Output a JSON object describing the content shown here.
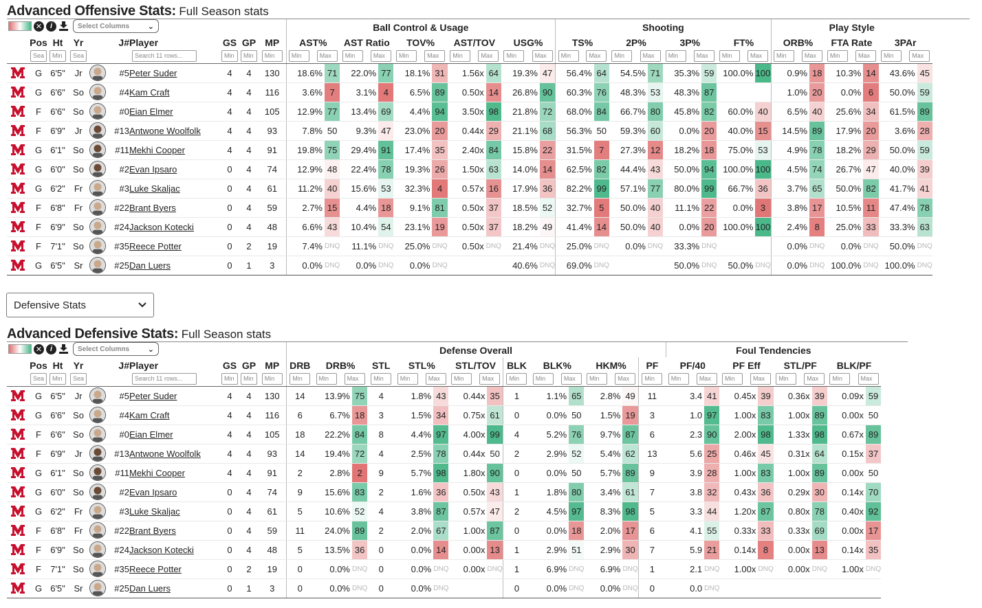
{
  "offense": {
    "title_bold": "Advanced Offensive Stats:",
    "title_rest": "Full Season stats",
    "select_columns": "Select Columns",
    "groups": {
      "ball": "Ball Control & Usage",
      "shooting": "Shooting",
      "play": "Play Style"
    },
    "headers": [
      "Pos",
      "Ht",
      "Yr",
      "J#",
      "Player",
      "GS",
      "GP",
      "MP",
      "AST%",
      "AST Ratio",
      "TOV%",
      "AST/TOV",
      "USG%",
      "TS%",
      "2P%",
      "3P%",
      "FT%",
      "ORB%",
      "FTA Rate",
      "3PAr"
    ],
    "filters": {
      "sea": "Sea",
      "min": "Min",
      "max": "Max",
      "search": "Search 11 rows..."
    },
    "rows": [
      [
        "G",
        "6'5\"",
        "Jr",
        "#5",
        "Peter Suder",
        "4",
        "4",
        "130",
        "18.6%",
        "71",
        "22.0%",
        "77",
        "18.1%",
        "31",
        "1.56x",
        "64",
        "19.3%",
        "47",
        "56.4%",
        "64",
        "54.5%",
        "71",
        "35.3%",
        "59",
        "100.0%",
        "100",
        "0.9%",
        "18",
        "10.3%",
        "14",
        "43.6%",
        "45"
      ],
      [
        "G",
        "6'6\"",
        "So",
        "#4",
        "Kam Craft",
        "4",
        "4",
        "116",
        "3.6%",
        "7",
        "3.1%",
        "4",
        "6.5%",
        "89",
        "0.50x",
        "14",
        "26.8%",
        "90",
        "60.3%",
        "76",
        "48.3%",
        "53",
        "48.3%",
        "87",
        "",
        "",
        "1.0%",
        "20",
        "0.0%",
        "6",
        "50.0%",
        "59"
      ],
      [
        "F",
        "6'6\"",
        "So",
        "#0",
        "Eian Elmer",
        "4",
        "4",
        "105",
        "12.9%",
        "77",
        "13.4%",
        "69",
        "4.4%",
        "94",
        "3.50x",
        "98",
        "21.8%",
        "72",
        "68.0%",
        "84",
        "66.7%",
        "80",
        "45.8%",
        "82",
        "60.0%",
        "40",
        "6.5%",
        "40",
        "25.6%",
        "34",
        "61.5%",
        "89"
      ],
      [
        "F",
        "6'9\"",
        "Jr",
        "#13",
        "Antwone Woolfolk",
        "4",
        "4",
        "93",
        "7.8%",
        "50",
        "9.3%",
        "47",
        "23.0%",
        "20",
        "0.44x",
        "29",
        "21.1%",
        "68",
        "56.3%",
        "50",
        "59.3%",
        "60",
        "0.0%",
        "20",
        "40.0%",
        "15",
        "14.5%",
        "89",
        "17.9%",
        "20",
        "3.6%",
        "28"
      ],
      [
        "G",
        "6'1\"",
        "So",
        "#11",
        "Mekhi Cooper",
        "4",
        "4",
        "91",
        "19.8%",
        "75",
        "29.4%",
        "91",
        "17.4%",
        "35",
        "2.40x",
        "84",
        "15.8%",
        "22",
        "31.5%",
        "7",
        "27.3%",
        "12",
        "18.2%",
        "18",
        "75.0%",
        "53",
        "4.9%",
        "78",
        "18.2%",
        "29",
        "50.0%",
        "59"
      ],
      [
        "G",
        "6'0\"",
        "So",
        "#2",
        "Evan Ipsaro",
        "0",
        "4",
        "74",
        "12.9%",
        "48",
        "22.4%",
        "78",
        "19.3%",
        "26",
        "1.50x",
        "63",
        "14.0%",
        "14",
        "62.5%",
        "82",
        "44.4%",
        "43",
        "50.0%",
        "94",
        "100.0%",
        "100",
        "4.5%",
        "74",
        "26.7%",
        "47",
        "40.0%",
        "39"
      ],
      [
        "G",
        "6'2\"",
        "Fr",
        "#3",
        "Luke Skaljac",
        "0",
        "4",
        "61",
        "11.2%",
        "40",
        "15.6%",
        "53",
        "32.3%",
        "4",
        "0.57x",
        "16",
        "17.9%",
        "36",
        "82.2%",
        "99",
        "57.1%",
        "77",
        "80.0%",
        "99",
        "66.7%",
        "36",
        "3.7%",
        "65",
        "50.0%",
        "82",
        "41.7%",
        "41"
      ],
      [
        "F",
        "6'8\"",
        "Fr",
        "#22",
        "Brant Byers",
        "0",
        "4",
        "59",
        "2.7%",
        "15",
        "4.4%",
        "18",
        "9.1%",
        "81",
        "0.50x",
        "37",
        "18.5%",
        "52",
        "32.7%",
        "5",
        "50.0%",
        "40",
        "11.1%",
        "22",
        "0.0%",
        "3",
        "3.8%",
        "17",
        "10.5%",
        "11",
        "47.4%",
        "78"
      ],
      [
        "F",
        "6'9\"",
        "So",
        "#24",
        "Jackson Kotecki",
        "0",
        "4",
        "48",
        "6.6%",
        "43",
        "10.4%",
        "54",
        "23.1%",
        "19",
        "0.50x",
        "37",
        "18.2%",
        "49",
        "41.4%",
        "14",
        "50.0%",
        "40",
        "0.0%",
        "20",
        "100.0%",
        "100",
        "2.4%",
        "8",
        "25.0%",
        "33",
        "33.3%",
        "63"
      ],
      [
        "F",
        "7'1\"",
        "So",
        "#35",
        "Reece Potter",
        "0",
        "2",
        "19",
        "7.4%",
        "DNQ",
        "11.1%",
        "DNQ",
        "25.0%",
        "DNQ",
        "0.50x",
        "DNQ",
        "21.4%",
        "DNQ",
        "25.0%",
        "DNQ",
        "0.0%",
        "DNQ",
        "33.3%",
        "DNQ",
        "",
        "",
        "0.0%",
        "DNQ",
        "0.0%",
        "DNQ",
        "50.0%",
        "DNQ"
      ],
      [
        "G",
        "6'5\"",
        "Sr",
        "#25",
        "Dan Luers",
        "0",
        "1",
        "3",
        "0.0%",
        "DNQ",
        "0.0%",
        "DNQ",
        "0.0%",
        "DNQ",
        "",
        "",
        "40.6%",
        "DNQ",
        "69.0%",
        "DNQ",
        "",
        "",
        "50.0%",
        "DNQ",
        "50.0%",
        "DNQ",
        "0.0%",
        "DNQ",
        "100.0%",
        "DNQ",
        "100.0%",
        "DNQ"
      ]
    ]
  },
  "dropdown": {
    "label": "Defensive Stats"
  },
  "defense": {
    "title_bold": "Advanced Defensive Stats:",
    "title_rest": "Full Season stats",
    "select_columns": "Select Columns",
    "groups": {
      "def": "Defense Overall",
      "foul": "Foul Tendencies"
    },
    "headers": [
      "Pos",
      "Ht",
      "Yr",
      "J#",
      "Player",
      "GS",
      "GP",
      "MP",
      "DRB",
      "DRB%",
      "STL",
      "STL%",
      "STL/TOV",
      "BLK",
      "BLK%",
      "HKM%",
      "PF",
      "PF/40",
      "PF Eff",
      "STL/PF",
      "BLK/PF"
    ],
    "rows": [
      [
        "G",
        "6'5\"",
        "Jr",
        "#5",
        "Peter Suder",
        "4",
        "4",
        "130",
        "14",
        "13.9%",
        "75",
        "4",
        "1.8%",
        "43",
        "0.44x",
        "35",
        "1",
        "1.1%",
        "65",
        "2.8%",
        "49",
        "11",
        "3.4",
        "41",
        "0.45x",
        "39",
        "0.36x",
        "39",
        "0.09x",
        "59"
      ],
      [
        "G",
        "6'6\"",
        "So",
        "#4",
        "Kam Craft",
        "4",
        "4",
        "116",
        "6",
        "6.7%",
        "18",
        "3",
        "1.5%",
        "34",
        "0.75x",
        "61",
        "0",
        "0.0%",
        "50",
        "1.5%",
        "19",
        "3",
        "1.0",
        "97",
        "1.00x",
        "83",
        "1.00x",
        "89",
        "0.00x",
        "50"
      ],
      [
        "F",
        "6'6\"",
        "So",
        "#0",
        "Eian Elmer",
        "4",
        "4",
        "105",
        "18",
        "22.2%",
        "84",
        "8",
        "4.4%",
        "97",
        "4.00x",
        "99",
        "4",
        "5.2%",
        "76",
        "9.7%",
        "87",
        "6",
        "2.3",
        "90",
        "2.00x",
        "98",
        "1.33x",
        "98",
        "0.67x",
        "89"
      ],
      [
        "F",
        "6'9\"",
        "Jr",
        "#13",
        "Antwone Woolfolk",
        "4",
        "4",
        "93",
        "14",
        "19.4%",
        "72",
        "4",
        "2.5%",
        "78",
        "0.44x",
        "50",
        "2",
        "2.9%",
        "52",
        "5.4%",
        "62",
        "13",
        "5.6",
        "25",
        "0.46x",
        "45",
        "0.31x",
        "64",
        "0.15x",
        "37"
      ],
      [
        "G",
        "6'1\"",
        "So",
        "#11",
        "Mekhi Cooper",
        "4",
        "4",
        "91",
        "2",
        "2.8%",
        "2",
        "9",
        "5.7%",
        "98",
        "1.80x",
        "90",
        "0",
        "0.0%",
        "50",
        "5.7%",
        "89",
        "9",
        "3.9",
        "28",
        "1.00x",
        "83",
        "1.00x",
        "89",
        "0.00x",
        "50"
      ],
      [
        "G",
        "6'0\"",
        "So",
        "#2",
        "Evan Ipsaro",
        "0",
        "4",
        "74",
        "9",
        "15.6%",
        "83",
        "2",
        "1.6%",
        "36",
        "0.50x",
        "43",
        "1",
        "1.8%",
        "80",
        "3.4%",
        "61",
        "7",
        "3.8",
        "32",
        "0.43x",
        "36",
        "0.29x",
        "30",
        "0.14x",
        "70"
      ],
      [
        "G",
        "6'2\"",
        "Fr",
        "#3",
        "Luke Skaljac",
        "0",
        "4",
        "61",
        "5",
        "10.6%",
        "52",
        "4",
        "3.8%",
        "87",
        "0.57x",
        "47",
        "2",
        "4.5%",
        "97",
        "8.3%",
        "98",
        "5",
        "3.3",
        "44",
        "1.20x",
        "87",
        "0.80x",
        "78",
        "0.40x",
        "92"
      ],
      [
        "F",
        "6'8\"",
        "Fr",
        "#22",
        "Brant Byers",
        "0",
        "4",
        "59",
        "11",
        "24.0%",
        "89",
        "2",
        "2.0%",
        "67",
        "1.00x",
        "87",
        "0",
        "0.0%",
        "18",
        "2.0%",
        "17",
        "6",
        "4.1",
        "55",
        "0.33x",
        "33",
        "0.33x",
        "69",
        "0.00x",
        "17"
      ],
      [
        "F",
        "6'9\"",
        "So",
        "#24",
        "Jackson Kotecki",
        "0",
        "4",
        "48",
        "5",
        "13.5%",
        "36",
        "0",
        "0.0%",
        "14",
        "0.00x",
        "13",
        "1",
        "2.9%",
        "51",
        "2.9%",
        "30",
        "7",
        "5.9",
        "21",
        "0.14x",
        "8",
        "0.00x",
        "13",
        "0.14x",
        "35"
      ],
      [
        "F",
        "7'1\"",
        "So",
        "#35",
        "Reece Potter",
        "0",
        "2",
        "19",
        "0",
        "0.0%",
        "DNQ",
        "0",
        "0.0%",
        "DNQ",
        "0.00x",
        "DNQ",
        "1",
        "6.9%",
        "DNQ",
        "6.9%",
        "DNQ",
        "1",
        "2.1",
        "DNQ",
        "1.00x",
        "DNQ",
        "0.00x",
        "DNQ",
        "1.00x",
        "DNQ"
      ],
      [
        "G",
        "6'5\"",
        "Sr",
        "#25",
        "Dan Luers",
        "0",
        "1",
        "3",
        "0",
        "0.0%",
        "DNQ",
        "0",
        "0.0%",
        "DNQ",
        "",
        "",
        "0",
        "0.0%",
        "DNQ",
        "0.0%",
        "DNQ",
        "0",
        "0.0",
        "DNQ",
        "",
        "",
        "",
        "",
        "",
        ""
      ]
    ]
  },
  "colors": {
    "good": "#4bb88a",
    "bad": "#e07070",
    "underline": "#1a5fa6",
    "logo": "#c8102e"
  }
}
